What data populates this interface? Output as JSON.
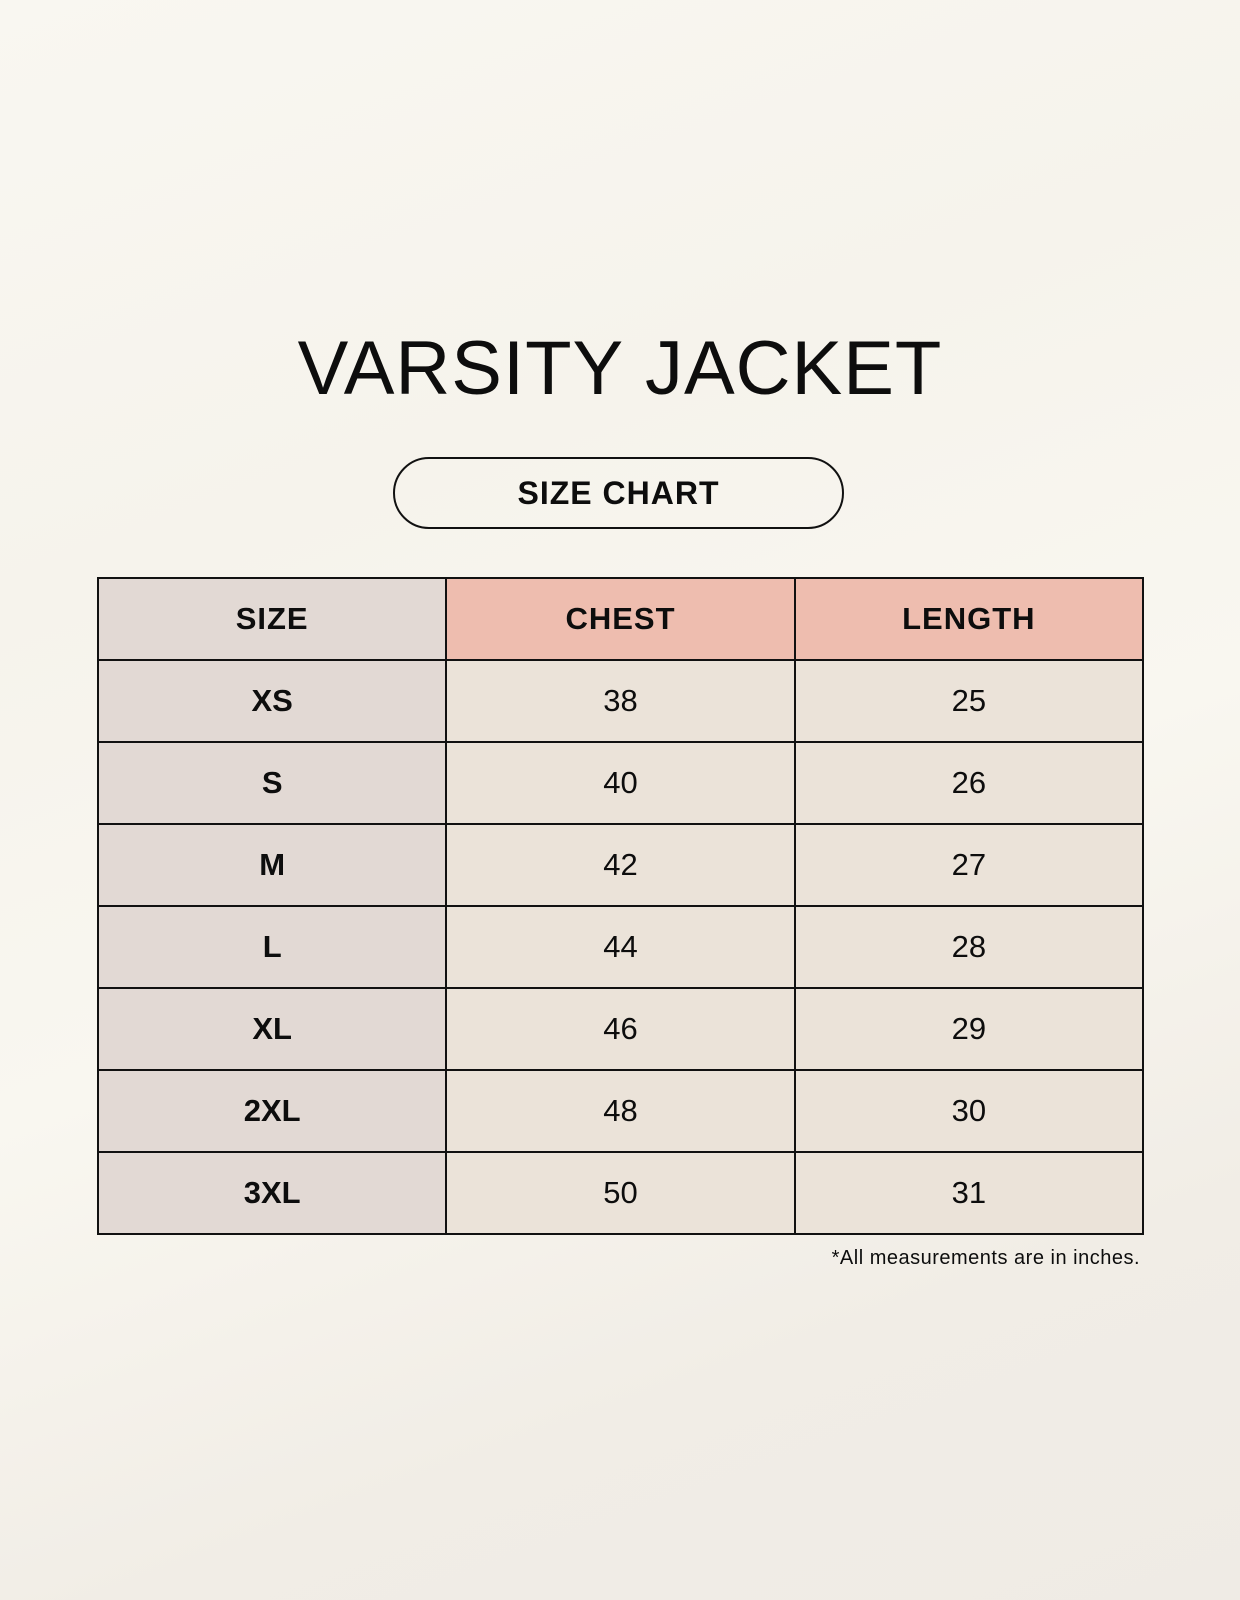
{
  "title": "VARSITY JACKET",
  "subtitle": "SIZE CHART",
  "colors": {
    "size_column": "#e2d9d4",
    "measure_header": "#eebdaf",
    "measure_cells": "#ebe3d9"
  },
  "table": {
    "headers": [
      "SIZE",
      "CHEST",
      "LENGTH"
    ],
    "rows": [
      [
        "XS",
        "38",
        "25"
      ],
      [
        "S",
        "40",
        "26"
      ],
      [
        "M",
        "42",
        "27"
      ],
      [
        "L",
        "44",
        "28"
      ],
      [
        "XL",
        "46",
        "29"
      ],
      [
        "2XL",
        "48",
        "30"
      ],
      [
        "3XL",
        "50",
        "31"
      ]
    ]
  },
  "note": "*All measurements are in inches."
}
